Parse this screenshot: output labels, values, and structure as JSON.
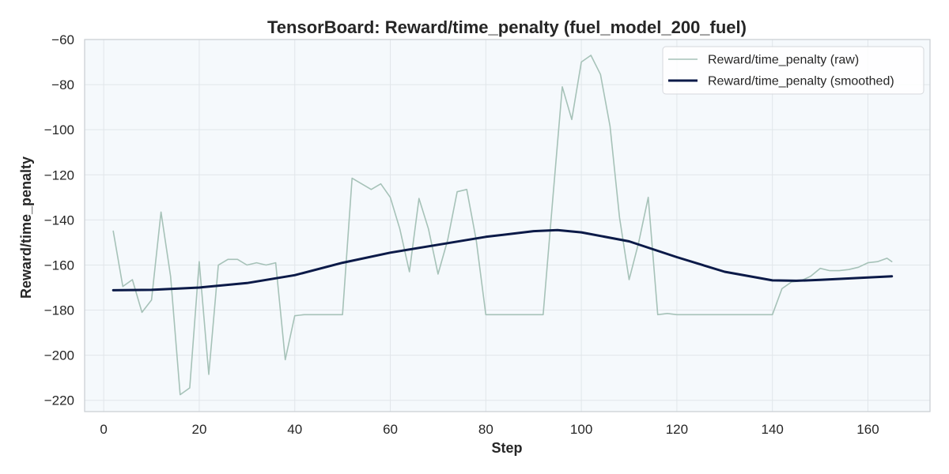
{
  "chart_data": {
    "type": "line",
    "title": "TensorBoard: Reward/time_penalty (fuel_model_200_fuel)",
    "xlabel": "Step",
    "ylabel": "Reward/time_penalty",
    "xlim": [
      -4,
      173
    ],
    "ylim": [
      -225,
      -60
    ],
    "xticks": [
      0,
      20,
      40,
      60,
      80,
      100,
      120,
      140,
      160
    ],
    "yticks": [
      -60,
      -80,
      -100,
      -120,
      -140,
      -160,
      -180,
      -200,
      -220
    ],
    "grid": true,
    "legend_position": "top-right",
    "series": [
      {
        "name": "Reward/time_penalty (raw)",
        "color": "#a6c2b8",
        "points": [
          [
            2,
            -145
          ],
          [
            4,
            -169.5
          ],
          [
            6,
            -166.5
          ],
          [
            8,
            -181
          ],
          [
            10,
            -175.5
          ],
          [
            12,
            -136.5
          ],
          [
            14,
            -165
          ],
          [
            16,
            -217.5
          ],
          [
            18,
            -214.5
          ],
          [
            20,
            -158.5
          ],
          [
            22,
            -208.5
          ],
          [
            24,
            -160
          ],
          [
            26,
            -157.5
          ],
          [
            28,
            -157.5
          ],
          [
            30,
            -160
          ],
          [
            32,
            -159
          ],
          [
            34,
            -160
          ],
          [
            36,
            -159
          ],
          [
            38,
            -202
          ],
          [
            40,
            -182.5
          ],
          [
            42,
            -182
          ],
          [
            44,
            -182
          ],
          [
            46,
            -182
          ],
          [
            48,
            -182
          ],
          [
            50,
            -182
          ],
          [
            52,
            -121.5
          ],
          [
            54,
            -124
          ],
          [
            56,
            -126.5
          ],
          [
            58,
            -124
          ],
          [
            60,
            -130
          ],
          [
            62,
            -144
          ],
          [
            64,
            -163
          ],
          [
            66,
            -130.5
          ],
          [
            68,
            -144
          ],
          [
            70,
            -164
          ],
          [
            72,
            -149
          ],
          [
            74,
            -127.5
          ],
          [
            76,
            -126.5
          ],
          [
            78,
            -149
          ],
          [
            80,
            -182
          ],
          [
            82,
            -182
          ],
          [
            84,
            -182
          ],
          [
            86,
            -182
          ],
          [
            88,
            -182
          ],
          [
            90,
            -182
          ],
          [
            92,
            -182
          ],
          [
            94,
            -131
          ],
          [
            96,
            -81
          ],
          [
            98,
            -95.5
          ],
          [
            100,
            -70
          ],
          [
            102,
            -67
          ],
          [
            104,
            -75.5
          ],
          [
            106,
            -98.5
          ],
          [
            108,
            -139
          ],
          [
            110,
            -166.5
          ],
          [
            112,
            -150
          ],
          [
            114,
            -130
          ],
          [
            116,
            -182
          ],
          [
            118,
            -181.5
          ],
          [
            120,
            -182
          ],
          [
            122,
            -182
          ],
          [
            124,
            -182
          ],
          [
            126,
            -182
          ],
          [
            128,
            -182
          ],
          [
            130,
            -182
          ],
          [
            132,
            -182
          ],
          [
            134,
            -182
          ],
          [
            136,
            -182
          ],
          [
            138,
            -182
          ],
          [
            140,
            -182
          ],
          [
            142,
            -170.5
          ],
          [
            144,
            -167.5
          ],
          [
            146,
            -167
          ],
          [
            148,
            -165
          ],
          [
            150,
            -161.5
          ],
          [
            152,
            -162.5
          ],
          [
            154,
            -162.5
          ],
          [
            156,
            -162
          ],
          [
            158,
            -161
          ],
          [
            160,
            -159
          ],
          [
            162,
            -158.5
          ],
          [
            164,
            -157
          ],
          [
            165,
            -158.5
          ]
        ]
      },
      {
        "name": "Reward/time_penalty (smoothed)",
        "color": "#0b1a48",
        "points": [
          [
            2,
            -171.2
          ],
          [
            10,
            -171
          ],
          [
            20,
            -170
          ],
          [
            30,
            -168
          ],
          [
            40,
            -164.5
          ],
          [
            50,
            -159
          ],
          [
            60,
            -154.5
          ],
          [
            70,
            -151
          ],
          [
            80,
            -147.5
          ],
          [
            90,
            -145
          ],
          [
            95,
            -144.5
          ],
          [
            100,
            -145.5
          ],
          [
            110,
            -149.5
          ],
          [
            120,
            -156.5
          ],
          [
            130,
            -163
          ],
          [
            140,
            -166.8
          ],
          [
            145,
            -167
          ],
          [
            150,
            -166.6
          ],
          [
            160,
            -165.5
          ],
          [
            165,
            -165
          ]
        ]
      }
    ]
  }
}
